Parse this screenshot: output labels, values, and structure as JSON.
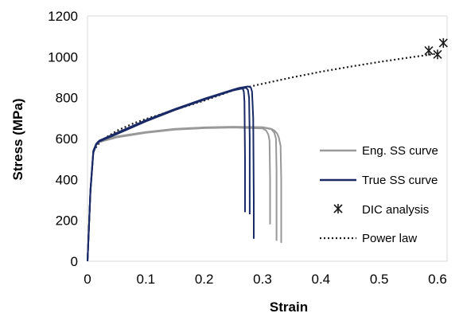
{
  "chart_data": {
    "type": "line",
    "title": "",
    "xlabel": "Strain",
    "ylabel": "Stress (MPa)",
    "xlim": [
      0,
      0.6
    ],
    "ylim": [
      0,
      1200
    ],
    "xticks": [
      0,
      0.1,
      0.2,
      0.3,
      0.4,
      0.5,
      0.6
    ],
    "xtick_labels": [
      "0",
      "0.1",
      "0.2",
      "0.3",
      "0.4",
      "0.5",
      "0.6"
    ],
    "yticks": [
      0,
      200,
      400,
      600,
      800,
      1000,
      1200
    ],
    "ytick_labels": [
      "0",
      "200",
      "400",
      "600",
      "800",
      "1000",
      "1200"
    ],
    "grid": false,
    "legend_position": "right",
    "series": [
      {
        "name": "Eng. SS curve",
        "style": "solid",
        "color": "#999999",
        "curves": [
          {
            "x": [
              0,
              0.005,
              0.01,
              0.015,
              0.02,
              0.05,
              0.1,
              0.15,
              0.2,
              0.25,
              0.3,
              0.315,
              0.32,
              0.325,
              0.328,
              0.331,
              0.332,
              0.332
            ],
            "y": [
              0,
              350,
              540,
              575,
              588,
              610,
              632,
              648,
              655,
              658,
              656,
              648,
              640,
              625,
              605,
              565,
              400,
              90
            ]
          },
          {
            "x": [
              0,
              0.005,
              0.01,
              0.015,
              0.02,
              0.05,
              0.1,
              0.15,
              0.2,
              0.25,
              0.3,
              0.315,
              0.32,
              0.323,
              0.324,
              0.324
            ],
            "y": [
              0,
              345,
              535,
              572,
              585,
              608,
              630,
              646,
              653,
              656,
              654,
              646,
              630,
              600,
              450,
              100
            ]
          },
          {
            "x": [
              0,
              0.005,
              0.01,
              0.015,
              0.02,
              0.05,
              0.1,
              0.15,
              0.2,
              0.25,
              0.3,
              0.306,
              0.31,
              0.312,
              0.313,
              0.313
            ],
            "y": [
              0,
              340,
              530,
              570,
              583,
              606,
              628,
              644,
              651,
              654,
              650,
              640,
              620,
              590,
              400,
              180
            ]
          }
        ]
      },
      {
        "name": "True SS curve",
        "style": "solid",
        "color": "#1a2a66",
        "curves": [
          {
            "x": [
              0,
              0.005,
              0.01,
              0.015,
              0.02,
              0.05,
              0.1,
              0.15,
              0.2,
              0.25,
              0.26,
              0.275,
              0.28,
              0.282,
              0.284,
              0.285,
              0.285
            ],
            "y": [
              0,
              350,
              540,
              575,
              590,
              628,
              690,
              745,
              795,
              840,
              848,
              855,
              850,
              830,
              700,
              300,
              110
            ]
          },
          {
            "x": [
              0,
              0.005,
              0.01,
              0.015,
              0.02,
              0.05,
              0.1,
              0.15,
              0.2,
              0.25,
              0.265,
              0.272,
              0.275,
              0.277,
              0.278,
              0.278
            ],
            "y": [
              0,
              345,
              535,
              572,
              588,
              625,
              687,
              742,
              792,
              838,
              846,
              848,
              838,
              800,
              600,
              230
            ]
          },
          {
            "x": [
              0,
              0.005,
              0.01,
              0.015,
              0.02,
              0.05,
              0.1,
              0.15,
              0.2,
              0.25,
              0.262,
              0.266,
              0.268,
              0.269,
              0.27,
              0.27
            ],
            "y": [
              0,
              340,
              530,
              570,
              585,
              622,
              684,
              740,
              790,
              836,
              843,
              845,
              830,
              780,
              500,
              240
            ]
          }
        ]
      },
      {
        "name": "DIC analysis",
        "style": "marker-asterisk",
        "color": "#1a1a1a",
        "points": [
          {
            "x": 0.585,
            "y": 1030
          },
          {
            "x": 0.6,
            "y": 1012
          },
          {
            "x": 0.61,
            "y": 1068
          }
        ]
      },
      {
        "name": "Power law",
        "style": "dotted",
        "color": "#1a1a1a",
        "x": [
          0.01,
          0.02,
          0.03,
          0.05,
          0.08,
          0.1,
          0.15,
          0.2,
          0.25,
          0.3,
          0.35,
          0.4,
          0.45,
          0.5,
          0.55,
          0.6
        ],
        "y": [
          540,
          578,
          602,
          638,
          676,
          696,
          741,
          786,
          836,
          868,
          899,
          927,
          952,
          975,
          996,
          1016
        ]
      }
    ]
  }
}
